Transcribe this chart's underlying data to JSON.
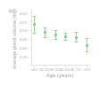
{
  "categories": [
    "<50",
    "51-55",
    "56-60",
    "61-65",
    "66-70",
    ">70"
  ],
  "means": [
    4.535,
    4.49,
    4.475,
    4.465,
    4.462,
    4.415
  ],
  "errors": [
    0.048,
    0.028,
    0.025,
    0.022,
    0.028,
    0.038
  ],
  "color": "#88cc88",
  "xlabel": "Age (years)",
  "ylabel": "Average gland volume (log)",
  "ylim": [
    4.3,
    4.62
  ],
  "yticks": [
    4.35,
    4.4,
    4.45,
    4.5,
    4.55,
    4.6
  ],
  "marker": "s",
  "markersize": 2.0,
  "capsize": 1.5,
  "linewidth": 0.6,
  "ylabel_fontsize": 3.5,
  "xlabel_fontsize": 3.8,
  "tick_fontsize": 3.2,
  "background_color": "#ffffff"
}
